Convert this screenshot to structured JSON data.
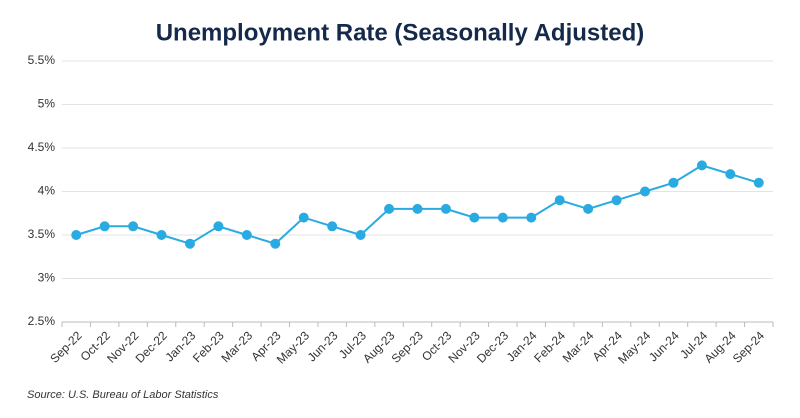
{
  "chart_data": {
    "type": "line",
    "title": "Unemployment Rate (Seasonally Adjusted)",
    "source": "Source: U.S. Bureau of Labor Statistics",
    "categories": [
      "Sep-22",
      "Oct-22",
      "Nov-22",
      "Dec-22",
      "Jan-23",
      "Feb-23",
      "Mar-23",
      "Apr-23",
      "May-23",
      "Jun-23",
      "Jul-23",
      "Aug-23",
      "Sep-23",
      "Oct-23",
      "Nov-23",
      "Dec-23",
      "Jan-24",
      "Feb-24",
      "Mar-24",
      "Apr-24",
      "May-24",
      "Jun-24",
      "Jul-24",
      "Aug-24",
      "Sep-24"
    ],
    "values": [
      3.5,
      3.6,
      3.6,
      3.5,
      3.4,
      3.6,
      3.5,
      3.4,
      3.7,
      3.6,
      3.5,
      3.8,
      3.8,
      3.8,
      3.7,
      3.7,
      3.7,
      3.9,
      3.8,
      3.9,
      4.0,
      4.1,
      4.3,
      4.2,
      4.1
    ],
    "color": "#29abe2",
    "ylim": [
      2.5,
      5.5
    ],
    "yticks": [
      {
        "value": 2.5,
        "label": "2.5%"
      },
      {
        "value": 3,
        "label": "3%"
      },
      {
        "value": 3.5,
        "label": "3.5%"
      },
      {
        "value": 4,
        "label": "4%"
      },
      {
        "value": 4.5,
        "label": "4.5%"
      },
      {
        "value": 5,
        "label": "5%"
      },
      {
        "value": 5.5,
        "label": "5.5%"
      }
    ],
    "grid": true
  }
}
